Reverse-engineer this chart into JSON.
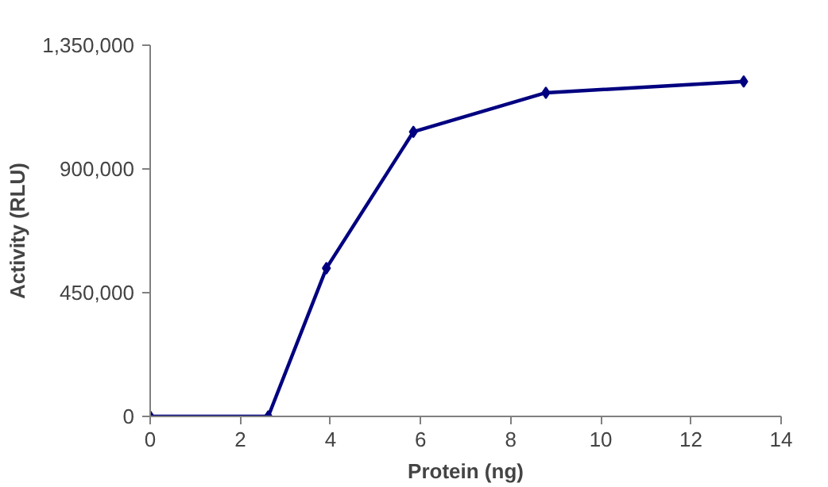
{
  "chart_data": {
    "type": "line",
    "xlabel": "Protein (ng)",
    "ylabel": "Activity (RLU)",
    "x": [
      0,
      2.62,
      3.91,
      5.84,
      8.78,
      13.17
    ],
    "series": [
      {
        "color": "#000080",
        "values": [
          0,
          0,
          539000,
          1035000,
          1177000,
          1218000
        ]
      }
    ],
    "xlim": [
      0,
      14
    ],
    "xticks": [
      0,
      2,
      4,
      6,
      8,
      10,
      12,
      14
    ],
    "ylim": [
      0,
      1350000
    ],
    "yticks": [
      {
        "value": 0,
        "label": "0"
      },
      {
        "value": 450000,
        "label": "450,000"
      },
      {
        "value": 900000,
        "label": "900,000"
      },
      {
        "value": 1350000,
        "label": "1,350,000"
      }
    ],
    "marker": "diamond",
    "line_style": "solid",
    "grid": false
  }
}
